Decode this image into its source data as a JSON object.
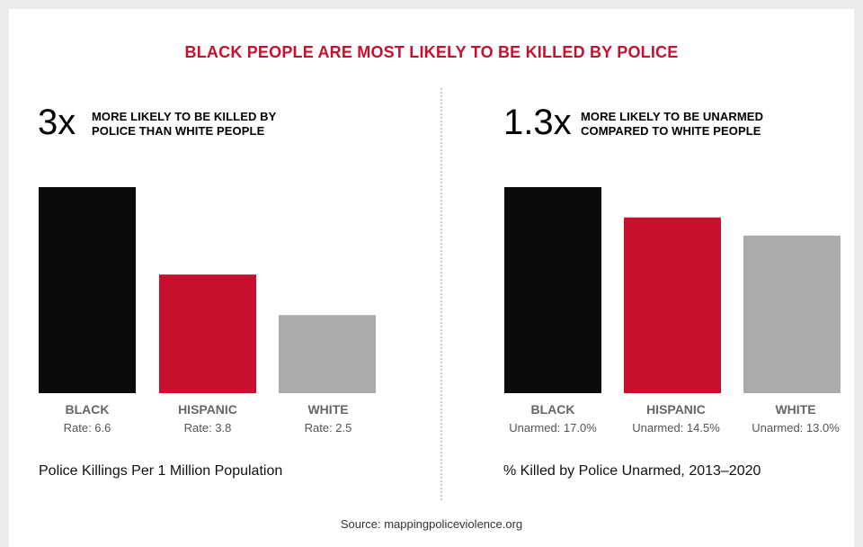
{
  "title": "BLACK PEOPLE ARE MOST LIKELY TO BE KILLED BY POLICE",
  "source": "Source: mappingpoliceviolence.org",
  "colors": {
    "title": "#c8102e",
    "black": "#0b0b0b",
    "hispanic": "#c8102e",
    "white": "#a9abad",
    "label": "#666666",
    "divider": "#c8c8c8"
  },
  "left_panel": {
    "multiplier": "3x",
    "note_line1": "MORE LIKELY TO BE KILLED BY",
    "note_line2": "POLICE THAN WHITE PEOPLE",
    "caption": "Police Killings Per 1 Million Population"
  },
  "right_panel": {
    "multiplier": "1.3x",
    "note_line1": "MORE LIKELY TO BE UNARMED",
    "note_line2": "COMPARED TO WHITE PEOPLE",
    "caption": "% Killed by Police Unarmed, 2013–2020"
  },
  "chart_data": [
    {
      "type": "bar",
      "categories": [
        "BLACK",
        "HISPANIC",
        "WHITE"
      ],
      "values": [
        6.6,
        3.8,
        2.5
      ],
      "value_labels": [
        "Rate: 6.6",
        "Rate: 3.8",
        "Rate: 2.5"
      ],
      "ylabel": "Police Killings Per 1 Million Population",
      "ylim": [
        0,
        6.6
      ],
      "bar_colors": [
        "#0b0b0b",
        "#c8102e",
        "#a9abad"
      ],
      "grid": false
    },
    {
      "type": "bar",
      "categories": [
        "BLACK",
        "HISPANIC",
        "WHITE"
      ],
      "values": [
        17.0,
        14.5,
        13.0
      ],
      "value_labels": [
        "Unarmed: 17.0%",
        "Unarmed: 14.5%",
        "Unarmed: 13.0%"
      ],
      "ylabel": "% Killed by Police Unarmed, 2013–2020",
      "ylim": [
        0,
        17.0
      ],
      "bar_colors": [
        "#0b0b0b",
        "#c8102e",
        "#a9abad"
      ],
      "grid": false
    }
  ]
}
